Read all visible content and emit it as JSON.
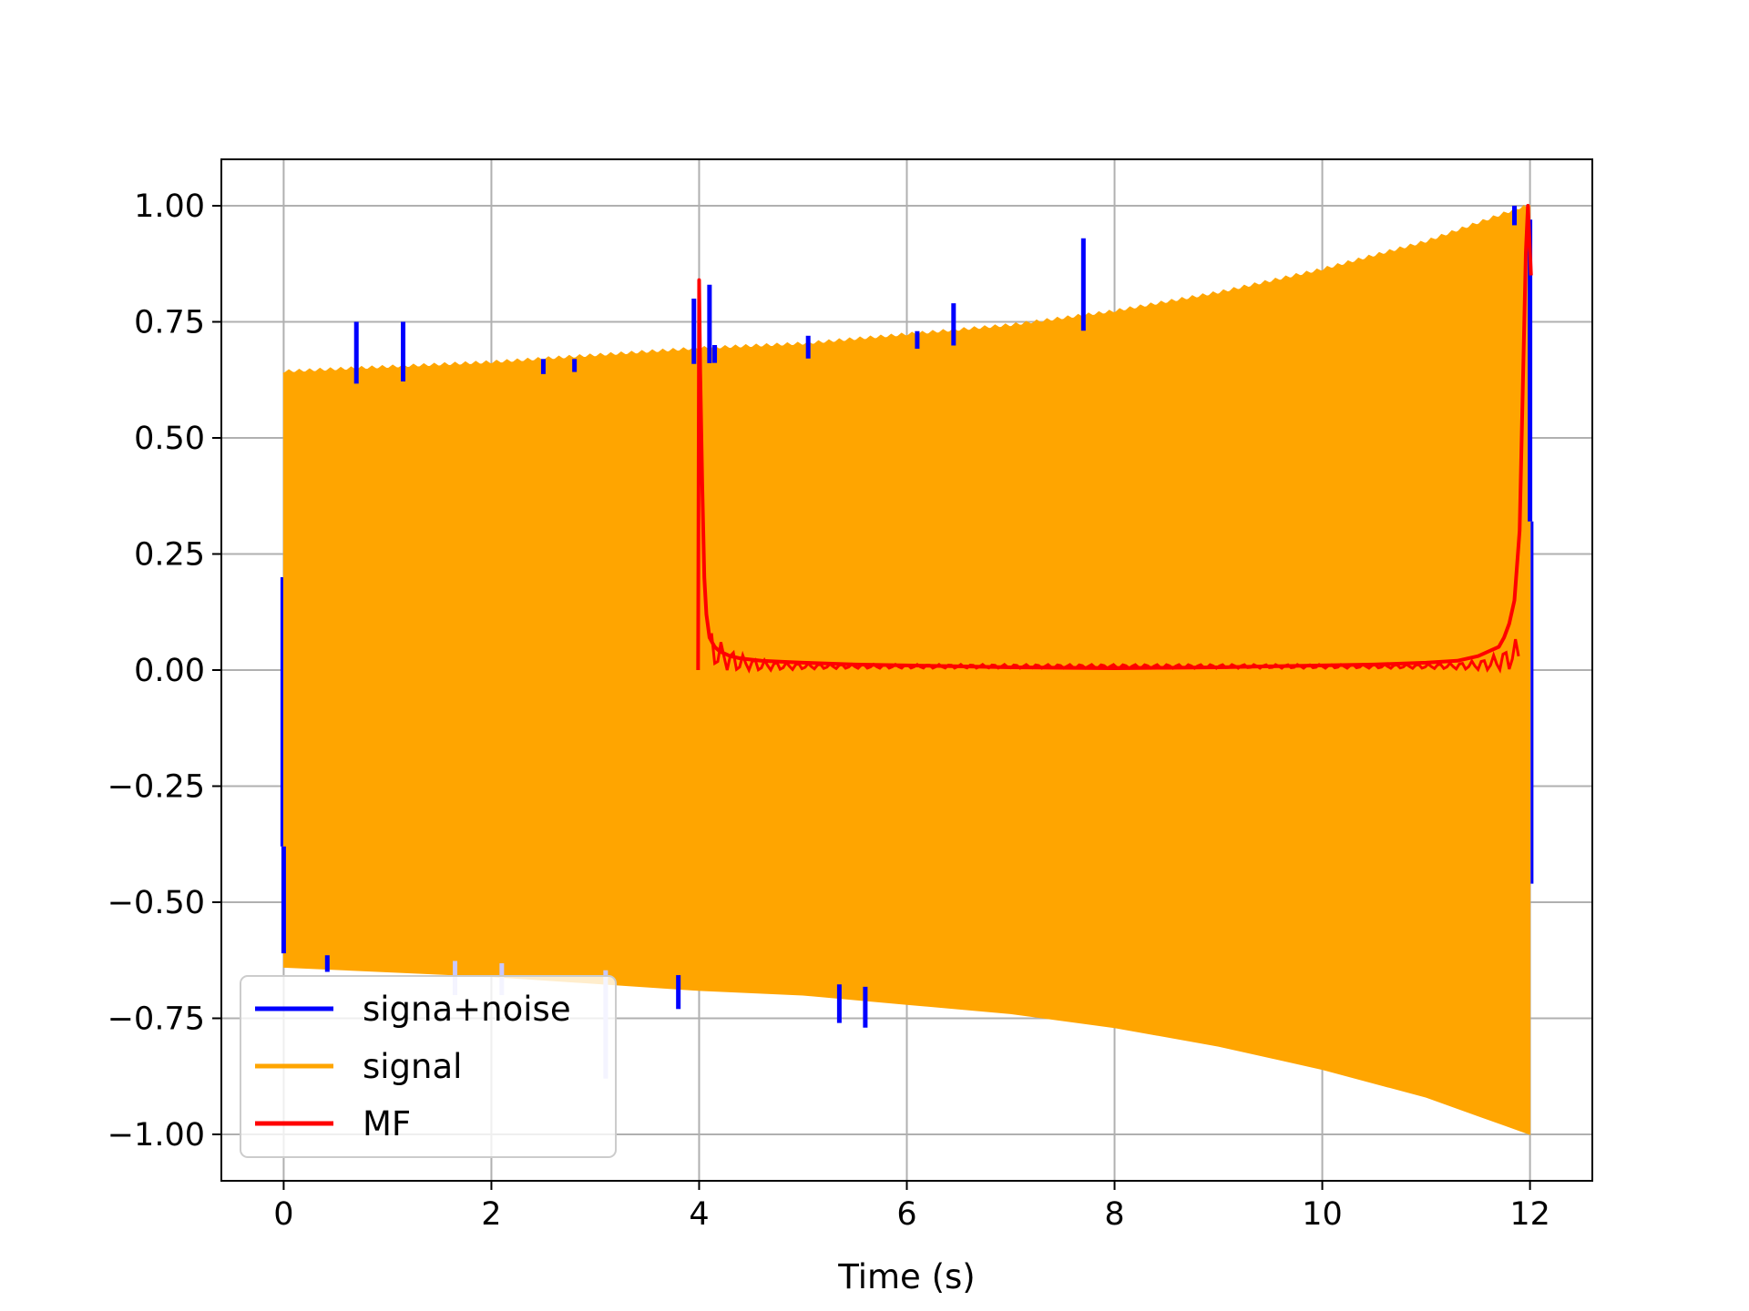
{
  "chart_data": {
    "type": "line",
    "title": "",
    "xlabel": "Time (s)",
    "ylabel": "",
    "xlim": [
      -0.6,
      12.6
    ],
    "ylim": [
      -1.1,
      1.1
    ],
    "grid": true,
    "legend": "lower-left",
    "x_ticks": [
      0,
      2,
      4,
      6,
      8,
      10,
      12
    ],
    "x_tick_labels": [
      "0",
      "2",
      "4",
      "6",
      "8",
      "10",
      "12"
    ],
    "y_ticks": [
      1.0,
      0.75,
      0.5,
      0.25,
      0.0,
      -0.25,
      -0.5,
      -0.75,
      -1.0
    ],
    "y_tick_labels": [
      "1.00",
      "0.75",
      "0.50",
      "0.25",
      "0.00",
      "−0.25",
      "−0.50",
      "−0.75",
      "−1.00"
    ],
    "series": [
      {
        "name": "signa+noise",
        "color": "#0000ff",
        "note_spikes_x": [
          0.0,
          0.42,
          0.7,
          1.15,
          1.65,
          2.1,
          2.5,
          2.8,
          3.1,
          3.8,
          3.95,
          4.1,
          4.15,
          5.05,
          5.35,
          5.6,
          6.1,
          6.45,
          7.7,
          11.85,
          12.0
        ],
        "note_spikes_y": [
          -0.38,
          -0.65,
          0.75,
          0.75,
          -0.7,
          -0.7,
          0.67,
          0.67,
          -0.88,
          -0.73,
          0.8,
          0.83,
          0.7,
          0.72,
          -0.76,
          -0.77,
          0.73,
          0.79,
          0.93,
          1.0,
          0.32
        ]
      },
      {
        "name": "signal",
        "color": "#ffa500",
        "envelope_x": [
          0,
          1,
          2,
          3,
          4,
          5,
          6,
          7,
          8,
          9,
          10,
          11,
          11.5,
          12
        ],
        "envelope_upper": [
          0.64,
          0.65,
          0.66,
          0.675,
          0.69,
          0.7,
          0.72,
          0.74,
          0.77,
          0.81,
          0.86,
          0.92,
          0.96,
          1.0
        ],
        "envelope_lower": [
          -0.64,
          -0.65,
          -0.66,
          -0.675,
          -0.69,
          -0.7,
          -0.72,
          -0.74,
          -0.77,
          -0.81,
          -0.86,
          -0.92,
          -0.96,
          -1.0
        ]
      },
      {
        "name": "MF",
        "color": "#ff0000",
        "x": [
          3.99,
          4.0,
          4.01,
          4.03,
          4.05,
          4.07,
          4.1,
          4.15,
          4.2,
          4.3,
          4.4,
          4.6,
          4.8,
          5.0,
          5.5,
          6.0,
          6.5,
          7.0,
          7.5,
          8.0,
          8.5,
          9.0,
          9.5,
          10.0,
          10.5,
          11.0,
          11.3,
          11.5,
          11.6,
          11.7,
          11.75,
          11.8,
          11.85,
          11.9,
          11.93,
          11.96,
          11.98,
          12.0,
          12.01
        ],
        "y": [
          0.0,
          0.84,
          0.65,
          0.4,
          0.2,
          0.12,
          0.07,
          0.05,
          0.04,
          0.03,
          0.025,
          0.02,
          0.018,
          0.016,
          0.012,
          0.01,
          0.008,
          0.006,
          0.005,
          0.004,
          0.005,
          0.006,
          0.008,
          0.01,
          0.012,
          0.016,
          0.02,
          0.03,
          0.04,
          0.05,
          0.07,
          0.1,
          0.15,
          0.3,
          0.6,
          0.9,
          1.0,
          0.9,
          0.85
        ]
      }
    ]
  }
}
